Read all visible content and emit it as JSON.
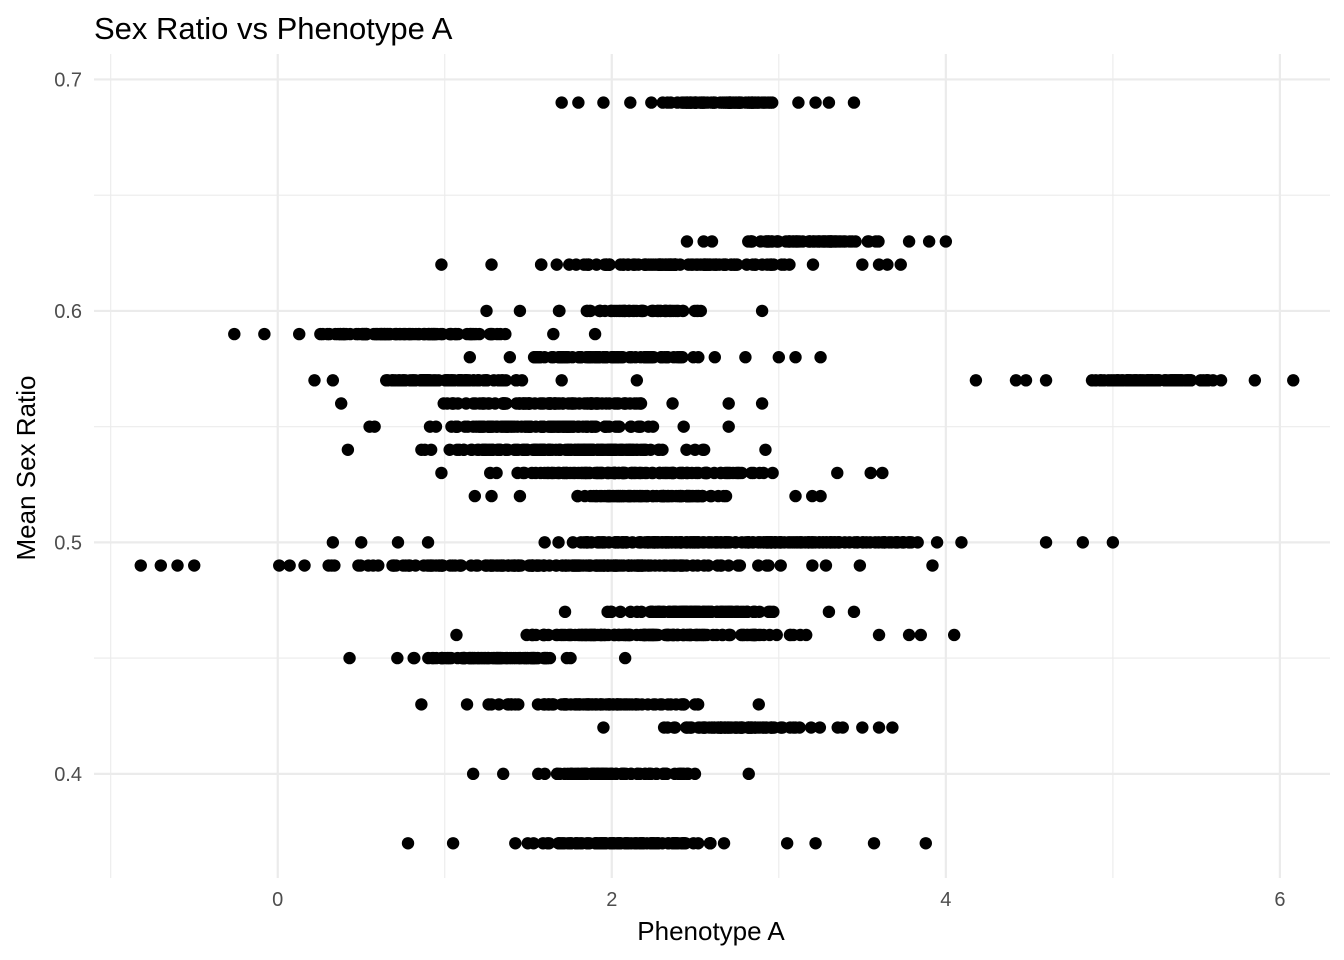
{
  "chart_data": {
    "type": "scatter",
    "title": "Sex Ratio vs Phenotype A",
    "xlabel": "Phenotype A",
    "ylabel": "Mean Sex Ratio",
    "xlim": [
      -1.1,
      6.3
    ],
    "ylim": [
      0.355,
      0.711
    ],
    "x_major_ticks": [
      0,
      2,
      4,
      6
    ],
    "x_tick_labels": [
      "0",
      "2",
      "4",
      "6"
    ],
    "x_minor_ticks": [
      -1,
      1,
      3,
      5
    ],
    "y_major_ticks": [
      0.4,
      0.5,
      0.6,
      0.7
    ],
    "y_tick_labels": [
      "0.4",
      "0.5",
      "0.6",
      "0.7"
    ],
    "y_minor_ticks": [
      0.45,
      0.55,
      0.65
    ],
    "grid": true,
    "legend": "none",
    "marker_color": "#000000",
    "rows": [
      {
        "y": 0.69,
        "x_min": 1.95,
        "x_max": 3.3,
        "n": 70,
        "extra": [
          1.7,
          1.8,
          3.22,
          3.45
        ]
      },
      {
        "y": 0.63,
        "x_min": 2.6,
        "x_max": 3.78,
        "n": 60,
        "extra": [
          2.45,
          2.55,
          3.9,
          4.0
        ]
      },
      {
        "y": 0.62,
        "x_min": 1.28,
        "x_max": 3.5,
        "n": 110,
        "extra": [
          0.98,
          3.6,
          3.65,
          3.73
        ]
      },
      {
        "y": 0.6,
        "x_min": 1.45,
        "x_max": 2.9,
        "n": 60,
        "extra": [
          1.25
        ]
      },
      {
        "y": 0.59,
        "x_min": -0.08,
        "x_max": 1.65,
        "n": 90,
        "extra": [
          -0.26,
          1.9
        ]
      },
      {
        "y": 0.58,
        "x_min": 1.15,
        "x_max": 2.8,
        "n": 80,
        "extra": [
          3.0,
          3.1,
          3.25
        ]
      },
      {
        "y": 0.57,
        "x_min": 0.33,
        "x_max": 1.7,
        "n": 70,
        "extra": [
          0.22,
          2.15
        ]
      },
      {
        "y": 0.57,
        "x_min": 4.6,
        "x_max": 5.85,
        "n": 70,
        "extra": [
          4.18,
          4.42,
          4.48,
          6.08
        ]
      },
      {
        "y": 0.56,
        "x_min": 0.38,
        "x_max": 2.7,
        "n": 90,
        "extra": [
          2.9
        ]
      },
      {
        "y": 0.55,
        "x_min": 0.58,
        "x_max": 2.7,
        "n": 100,
        "extra": [
          0.55
        ]
      },
      {
        "y": 0.54,
        "x_min": 0.42,
        "x_max": 2.92,
        "n": 130,
        "extra": []
      },
      {
        "y": 0.53,
        "x_min": 0.98,
        "x_max": 3.35,
        "n": 120,
        "extra": [
          3.55,
          3.62
        ]
      },
      {
        "y": 0.52,
        "x_min": 1.45,
        "x_max": 3.1,
        "n": 90,
        "extra": [
          1.18,
          1.28,
          3.2,
          3.25
        ]
      },
      {
        "y": 0.5,
        "x_min": 0.9,
        "x_max": 4.6,
        "n": 200,
        "extra": [
          0.33,
          0.5,
          0.72,
          4.82,
          5.0
        ]
      },
      {
        "y": 0.49,
        "x_min": -0.5,
        "x_max": 3.92,
        "n": 200,
        "extra": [
          -0.82,
          -0.7,
          -0.6
        ]
      },
      {
        "y": 0.47,
        "x_min": 1.72,
        "x_max": 3.3,
        "n": 90,
        "extra": [
          3.45
        ]
      },
      {
        "y": 0.46,
        "x_min": 1.07,
        "x_max": 3.6,
        "n": 160,
        "extra": [
          3.78,
          3.85,
          4.05
        ]
      },
      {
        "y": 0.45,
        "x_min": 0.43,
        "x_max": 2.08,
        "n": 90,
        "extra": []
      },
      {
        "y": 0.43,
        "x_min": 0.86,
        "x_max": 2.88,
        "n": 90,
        "extra": []
      },
      {
        "y": 0.42,
        "x_min": 1.95,
        "x_max": 3.5,
        "n": 90,
        "extra": [
          3.6,
          3.68
        ]
      },
      {
        "y": 0.4,
        "x_min": 1.35,
        "x_max": 2.82,
        "n": 80,
        "extra": [
          1.17
        ]
      },
      {
        "y": 0.37,
        "x_min": 1.05,
        "x_max": 3.05,
        "n": 100,
        "extra": [
          0.78,
          3.22,
          3.57,
          3.88
        ]
      }
    ]
  }
}
